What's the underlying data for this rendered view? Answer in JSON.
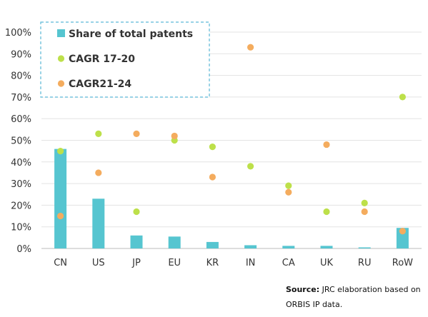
{
  "chart_data": {
    "type": "bar",
    "categories": [
      "CN",
      "US",
      "JP",
      "EU",
      "KR",
      "IN",
      "CA",
      "UK",
      "RU",
      "RoW"
    ],
    "series": [
      {
        "name": "Share of total patents",
        "kind": "bar",
        "color": "#56c5d0",
        "values": [
          46,
          23,
          6,
          5.5,
          3,
          1.5,
          1.2,
          1.2,
          0.5,
          9.5
        ]
      },
      {
        "name": "CAGR 17-20",
        "kind": "dot",
        "color": "#bde04a",
        "values": [
          45,
          53,
          17,
          50,
          47,
          38,
          29,
          17,
          21,
          70
        ]
      },
      {
        "name": "CAGR21-24",
        "kind": "dot",
        "color": "#f4ac5e",
        "values": [
          15,
          35,
          53,
          52,
          33,
          93,
          26,
          48,
          17,
          8
        ]
      }
    ],
    "yticks": [
      "0%",
      "10%",
      "20%",
      "30%",
      "40%",
      "50%",
      "60%",
      "70%",
      "80%",
      "90%",
      "100%"
    ],
    "ylim": [
      0,
      100
    ],
    "legend_position": "top-left"
  },
  "source": {
    "label": "Source:",
    "text": "JRC elaboration based on ORBIS IP data."
  }
}
